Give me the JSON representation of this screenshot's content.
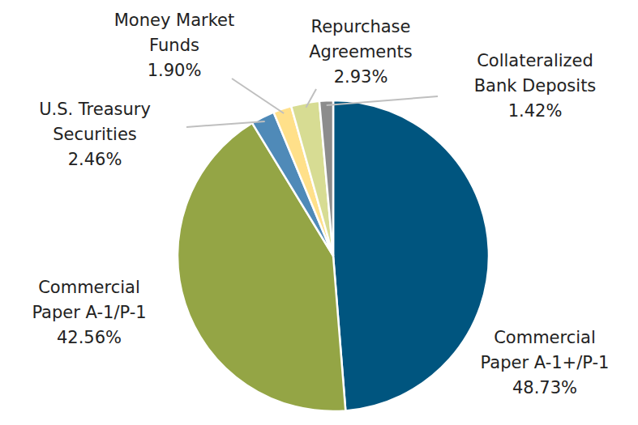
{
  "chart_data": {
    "type": "pie",
    "categories": [
      "Commercial Paper A-1+/P-1",
      "Commercial Paper A-1/P-1",
      "U.S. Treasury Securities",
      "Money Market Funds",
      "Repurchase Agreements",
      "Collateralized Bank Deposits"
    ],
    "values": [
      48.73,
      42.56,
      2.46,
      1.9,
      2.93,
      1.42
    ],
    "value_labels": [
      "48.73%",
      "42.56%",
      "2.46%",
      "1.90%",
      "2.93%",
      "1.42%"
    ],
    "colors": [
      "#00557f",
      "#94a545",
      "#4f8ab8",
      "#ffe08a",
      "#d7dc93",
      "#8c8c8c"
    ],
    "data_labels": true
  }
}
